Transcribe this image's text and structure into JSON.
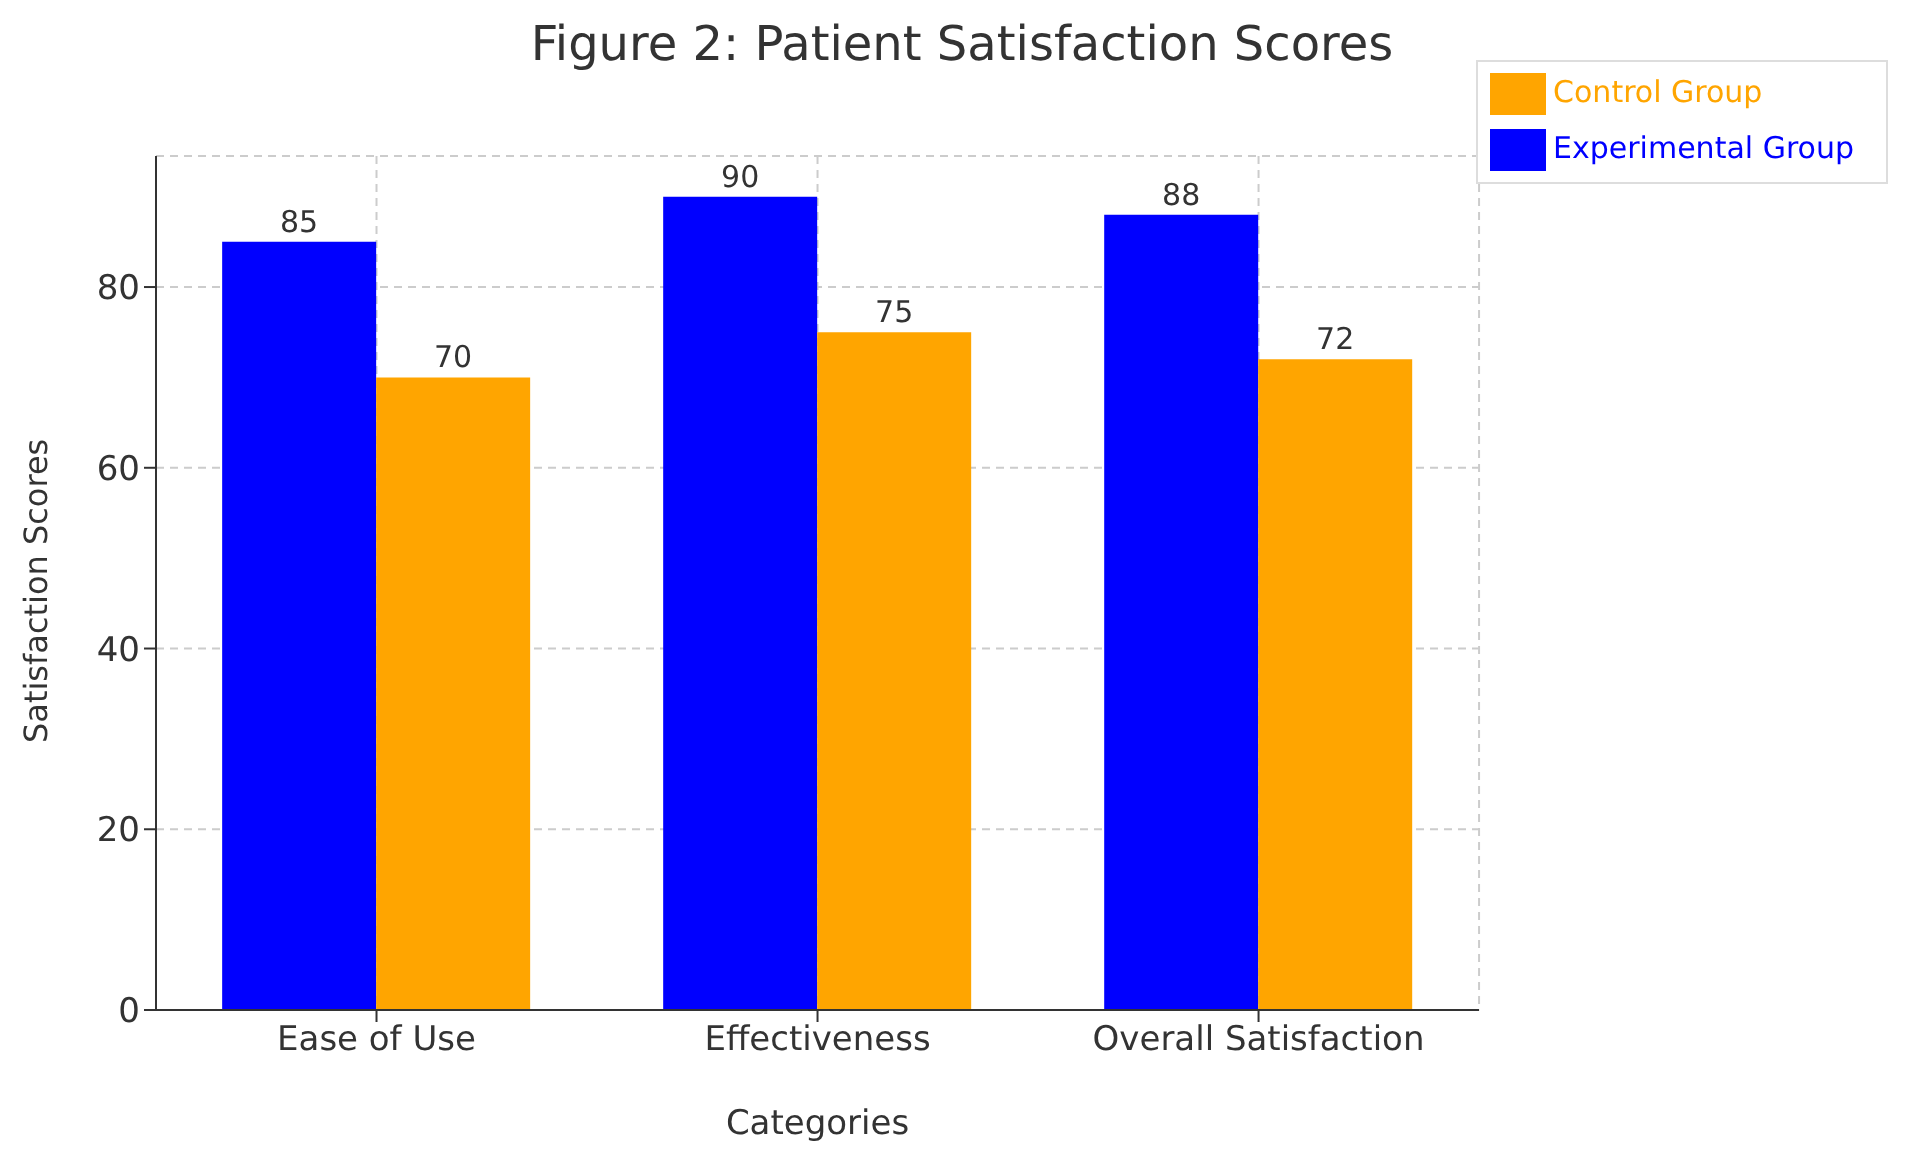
{
  "chart_data": {
    "type": "bar",
    "title": "Figure 2: Patient Satisfaction Scores",
    "xlabel": "Categories",
    "ylabel": "Satisfaction Scores",
    "categories": [
      "Ease of Use",
      "Effectiveness",
      "Overall Satisfaction"
    ],
    "series": [
      {
        "name": "Experimental Group",
        "color": "#0000ff",
        "values": [
          85,
          90,
          88
        ]
      },
      {
        "name": "Control Group",
        "color": "#ffa500",
        "values": [
          70,
          75,
          72
        ]
      }
    ],
    "ylim": [
      0,
      94.5
    ],
    "yticks": [
      0,
      20,
      40,
      60,
      80
    ],
    "grid": true,
    "legend": "top right",
    "data_labels": true
  }
}
